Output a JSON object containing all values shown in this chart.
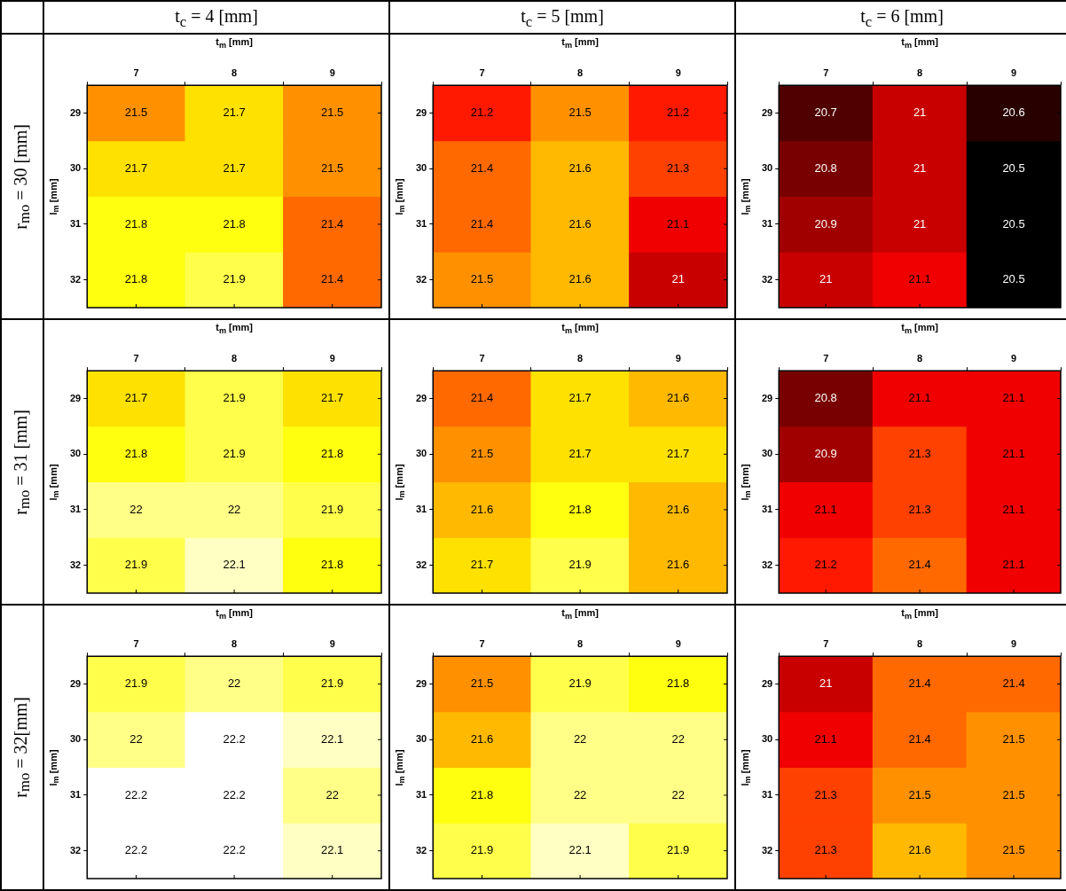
{
  "chart_data": [
    {
      "type": "heatmap",
      "title": "t$_{c}$ = 4 [mm]",
      "annotations": [
        "r$_{mo}$ = 30 [mm]"
      ],
      "xlabel": "t$_{m}$ [mm]",
      "ylabel": "l$_{m}$ [mm]",
      "categories": [
        "7",
        "8",
        "9"
      ],
      "y_categories": [
        "29",
        "30",
        "31",
        "32"
      ],
      "data_labels": true,
      "cells": [
        [
          21.5,
          21.7,
          21.5
        ],
        [
          21.7,
          21.7,
          21.5
        ],
        [
          21.8,
          21.8,
          21.4
        ],
        [
          21.8,
          21.9,
          21.4
        ]
      ]
    },
    {
      "type": "heatmap",
      "title": "t$_{c}$ = 5 [mm]",
      "xlabel": "t$_{m}$ [mm]",
      "ylabel": "l$_{m}$ [mm]",
      "categories": [
        "7",
        "8",
        "9"
      ],
      "y_categories": [
        "29",
        "30",
        "31",
        "32"
      ],
      "data_labels": true,
      "cells": [
        [
          21.2,
          21.5,
          21.2
        ],
        [
          21.4,
          21.6,
          21.3
        ],
        [
          21.4,
          21.6,
          21.1
        ],
        [
          21.5,
          21.6,
          21
        ]
      ]
    },
    {
      "type": "heatmap",
      "title": "t$_{c}$ = 6 [mm]",
      "xlabel": "t$_{m}$ [mm]",
      "ylabel": "l$_{m}$ [mm]",
      "categories": [
        "7",
        "8",
        "9"
      ],
      "y_categories": [
        "29",
        "30",
        "31",
        "32"
      ],
      "data_labels": true,
      "cells": [
        [
          20.7,
          21,
          20.6
        ],
        [
          20.8,
          21,
          20.5
        ],
        [
          20.9,
          21,
          20.5
        ],
        [
          21,
          21.1,
          20.5
        ]
      ]
    },
    {
      "type": "heatmap",
      "annotations": [
        "r$_{mo}$ = 31 [mm]"
      ],
      "xlabel": "t$_{m}$ [mm]",
      "ylabel": "l$_{m}$ [mm]",
      "categories": [
        "7",
        "8",
        "9"
      ],
      "y_categories": [
        "29",
        "30",
        "31",
        "32"
      ],
      "data_labels": true,
      "cells": [
        [
          21.7,
          21.9,
          21.7
        ],
        [
          21.8,
          21.9,
          21.8
        ],
        [
          22,
          22,
          21.9
        ],
        [
          21.9,
          22.1,
          21.8
        ]
      ]
    },
    {
      "type": "heatmap",
      "xlabel": "t$_{m}$ [mm]",
      "ylabel": "l$_{m}$ [mm]",
      "categories": [
        "7",
        "8",
        "9"
      ],
      "y_categories": [
        "29",
        "30",
        "31",
        "32"
      ],
      "data_labels": true,
      "cells": [
        [
          21.4,
          21.7,
          21.6
        ],
        [
          21.5,
          21.7,
          21.7
        ],
        [
          21.6,
          21.8,
          21.6
        ],
        [
          21.7,
          21.9,
          21.6
        ]
      ]
    },
    {
      "type": "heatmap",
      "xlabel": "t$_{m}$ [mm]",
      "ylabel": "l$_{m}$ [mm]",
      "categories": [
        "7",
        "8",
        "9"
      ],
      "y_categories": [
        "29",
        "30",
        "31",
        "32"
      ],
      "data_labels": true,
      "cells": [
        [
          20.8,
          21.1,
          21.1
        ],
        [
          20.9,
          21.3,
          21.1
        ],
        [
          21.1,
          21.3,
          21.1
        ],
        [
          21.2,
          21.4,
          21.1
        ]
      ]
    },
    {
      "type": "heatmap",
      "annotations": [
        "r$_{mo}$ = 32[mm]"
      ],
      "xlabel": "t$_{m}$ [mm]",
      "ylabel": "l$_{m}$ [mm]",
      "categories": [
        "7",
        "8",
        "9"
      ],
      "y_categories": [
        "29",
        "30",
        "31",
        "32"
      ],
      "data_labels": true,
      "cells": [
        [
          21.9,
          22,
          21.9
        ],
        [
          22,
          22.2,
          22.1
        ],
        [
          22.2,
          22.2,
          22
        ],
        [
          22.2,
          22.2,
          22.1
        ]
      ]
    },
    {
      "type": "heatmap",
      "xlabel": "t$_{m}$ [mm]",
      "ylabel": "l$_{m}$ [mm]",
      "categories": [
        "7",
        "8",
        "9"
      ],
      "y_categories": [
        "29",
        "30",
        "31",
        "32"
      ],
      "data_labels": true,
      "cells": [
        [
          21.5,
          21.9,
          21.8
        ],
        [
          21.6,
          22,
          22
        ],
        [
          21.8,
          22,
          22
        ],
        [
          21.9,
          22.1,
          21.9
        ]
      ]
    },
    {
      "type": "heatmap",
      "xlabel": "t$_{m}$ [mm]",
      "ylabel": "l$_{m}$ [mm]",
      "categories": [
        "7",
        "8",
        "9"
      ],
      "y_categories": [
        "29",
        "30",
        "31",
        "32"
      ],
      "data_labels": true,
      "cells": [
        [
          21,
          21.4,
          21.4
        ],
        [
          21.1,
          21.4,
          21.5
        ],
        [
          21.3,
          21.5,
          21.5
        ],
        [
          21.3,
          21.6,
          21.5
        ]
      ]
    }
  ]
}
